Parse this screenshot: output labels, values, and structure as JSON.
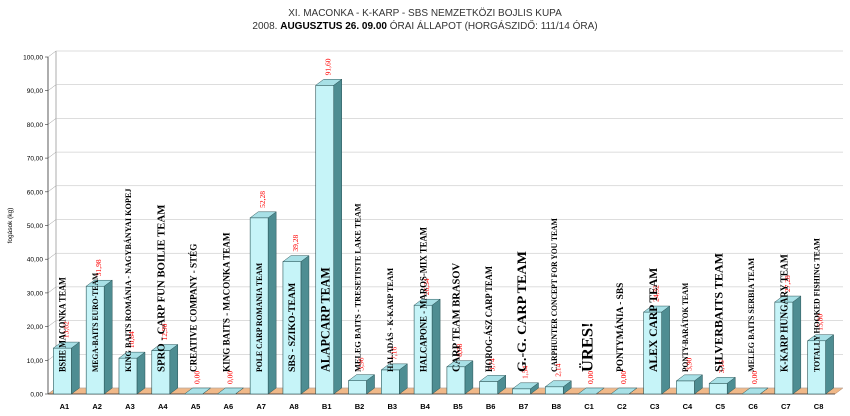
{
  "title_line1": "XI. MACONKA - K-KARP - SBS NEMZETKÖZI BOJLIS KUPA",
  "title_line2_prefix": "2008.",
  "title_line2_bold": "AUGUSZTUS 26. 09.00",
  "title_line2_suffix": "ÓRAI ÁLLAPOT (HORGÁSZIDŐ: 111/14 ÓRA)",
  "chart_data": {
    "type": "bar",
    "ylabel": "fogások (kg)",
    "ylim": [
      0,
      100
    ],
    "yticks": [
      "0,00",
      "10,00",
      "20,00",
      "30,00",
      "40,00",
      "50,00",
      "60,00",
      "70,00",
      "80,00",
      "90,00",
      "100,00"
    ],
    "categories": [
      "A1",
      "A2",
      "A3",
      "A4",
      "A5",
      "A6",
      "A7",
      "A8",
      "B1",
      "B2",
      "B3",
      "B4",
      "B5",
      "B6",
      "B7",
      "B8",
      "C1",
      "C2",
      "C3",
      "C4",
      "C5",
      "C6",
      "C7",
      "C8"
    ],
    "values": [
      13.62,
      31.98,
      10.64,
      12.9,
      0.0,
      0.0,
      52.28,
      39.28,
      91.6,
      3.96,
      7.16,
      26.34,
      8.08,
      3.74,
      1.54,
      2.14,
      0.0,
      0.0,
      24.32,
      3.9,
      3.16,
      0.0,
      27.28,
      15.8
    ],
    "value_labels": [
      "13,62",
      "31,98",
      "10,64",
      "12,90",
      "0,00",
      "0,00",
      "52,28",
      "39,28",
      "91,60",
      "3,96",
      "7,16",
      "26,34",
      "8,08",
      "3,74",
      "1,54",
      "2,14",
      "0,00",
      "0,00",
      "24,32",
      "3,90",
      "3,16",
      "0,00",
      "27,28",
      "15,80"
    ],
    "team_names": [
      "BSHE MACONKA TEAM",
      "MEGA-BAITS EURO-TEAM",
      "KING BAITS ROMÁNIA - NAGYBÁNYAI KOPEJ",
      "SPRO - CARP FUN BOILIE TEAM",
      "CREATIVE COMPANY - STÉG",
      "KING BAITS - MACONKA TEAM",
      "POLE CARP ROMANIA TEAM",
      "SBS - SZIKO-TEAM",
      "ALAPCARP TEAM",
      "MELEG BAITS - TRESETISTE LAKE TEAM",
      "HALADÁS - K-KARP TEAM",
      "HALCAPONE - MAROS-MIX TEAM",
      "CARP TEAM BRASOV",
      "HOROG-ÁSZ CARP TEAM",
      "G.-G. CARP TEAM",
      "CARPHUNTER CONCEPT FOR YOU TEAM",
      "ÜRES!",
      "PONTYMÁNIA - SBS",
      "ALEX CARP TEAM",
      "PONTY-BARÁTOK TEAM",
      "SILVERBAITS TEAM",
      "MELEG BAITS SERBIA TEAM",
      "K-KARP HUNGARY TEAM",
      "TOTALLY HOOKED FISHING TEAM"
    ],
    "grid": true,
    "colors": {
      "bar_front": "#c6f4f8",
      "bar_side": "#4e8d92",
      "bar_top": "#a8e0e6",
      "floor": "#f0b888",
      "value_label": "#ff0000"
    }
  }
}
